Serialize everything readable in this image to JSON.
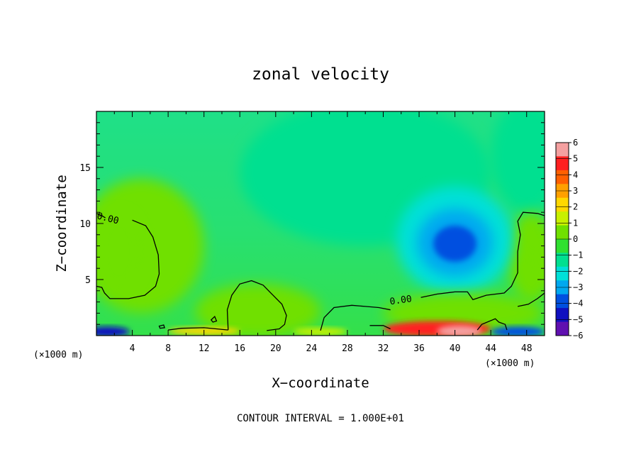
{
  "chart_data": {
    "type": "heatmap",
    "title": "zonal velocity",
    "xlabel": "X−coordinate",
    "ylabel": "Z−coordinate",
    "x_units": "(×1000 m)",
    "footer": "CONTOUR INTERVAL = 1.000E+01",
    "xlim": [
      0,
      50
    ],
    "ylim": [
      0,
      20
    ],
    "x_ticks": [
      4,
      8,
      12,
      16,
      20,
      24,
      28,
      32,
      36,
      40,
      44,
      48
    ],
    "y_ticks": [
      5,
      10,
      15
    ],
    "colorbar": {
      "ticks": [
        6,
        5,
        4,
        3,
        2,
        1,
        0,
        -1,
        -2,
        -3,
        -4,
        -5,
        -6
      ],
      "tick_labels": [
        "6",
        "5",
        "4",
        "3",
        "2",
        "1",
        "0",
        "−1",
        "−2",
        "−3",
        "−4",
        "−5",
        "−6"
      ],
      "colors": [
        "#f4a0a0",
        "#ff2020",
        "#ff6000",
        "#ffa000",
        "#ffd800",
        "#c8f000",
        "#70e000",
        "#30e030",
        "#00e090",
        "#00e0d8",
        "#00a8f0",
        "#0050e0",
        "#1010c0",
        "#6010b0"
      ],
      "range": [
        -6,
        6
      ]
    },
    "contour_labels": [
      {
        "text": "0.00",
        "x": 1.2,
        "z": 10.2
      },
      {
        "text": "0.00",
        "x": 34.0,
        "z": 2.9
      }
    ],
    "features": [
      {
        "value": -3.0,
        "x": 40,
        "z": 8.2,
        "note": "negative core"
      },
      {
        "value": 0.8,
        "x": 2.5,
        "z": 7.5
      },
      {
        "value": 0.8,
        "x": 49.5,
        "z": 7.0
      },
      {
        "value": 5.0,
        "x": 38,
        "z": 0.5
      },
      {
        "value": -5.0,
        "x": 1,
        "z": 0.4
      }
    ]
  }
}
